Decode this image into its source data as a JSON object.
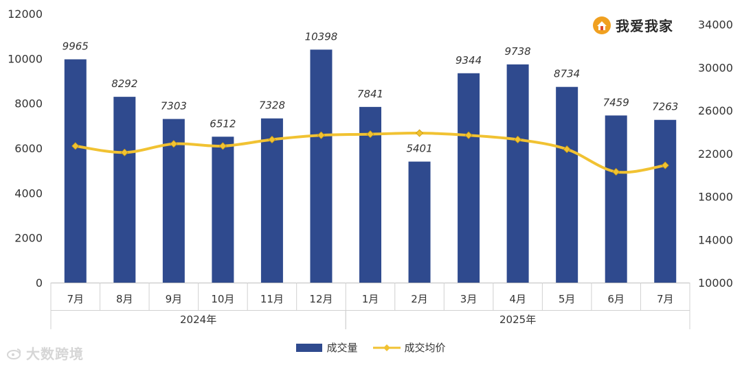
{
  "brand": {
    "name": "我爱我家",
    "icon": "house-logo-icon"
  },
  "watermark": {
    "text": "大数跨境",
    "icon": "weibo-logo-icon"
  },
  "chart_data": {
    "type": "bar+line",
    "categories": [
      "7月",
      "8月",
      "9月",
      "10月",
      "11月",
      "12月",
      "1月",
      "2月",
      "3月",
      "4月",
      "5月",
      "6月",
      "7月"
    ],
    "groups": [
      {
        "label": "2024年",
        "count": 6
      },
      {
        "label": "2025年",
        "count": 7
      }
    ],
    "series": [
      {
        "name": "成交量",
        "type": "bar",
        "axis": "left",
        "color": "#2f4a8e",
        "values": [
          9965,
          8292,
          7303,
          6512,
          7328,
          10398,
          7841,
          5401,
          9344,
          9738,
          8734,
          7459,
          7263
        ],
        "labels": [
          "9965",
          "8292",
          "7303",
          "6512",
          "7328",
          "10398",
          "7841",
          "5401",
          "9344",
          "9738",
          "8734",
          "7459",
          "7263"
        ]
      },
      {
        "name": "成交均价",
        "type": "line",
        "axis": "right",
        "color": "#f1c232",
        "values": [
          22700,
          22100,
          22900,
          22700,
          23300,
          23700,
          23800,
          23900,
          23700,
          23300,
          22400,
          20300,
          20900
        ]
      }
    ],
    "y_left": {
      "min": 0,
      "max": 12000,
      "ticks": [
        "0",
        "2000",
        "4000",
        "6000",
        "8000",
        "10000",
        "12000"
      ]
    },
    "y_right": {
      "min": 10000,
      "max": 35000,
      "ticks": [
        "10000",
        "14000",
        "18000",
        "22000",
        "26000",
        "30000",
        "34000"
      ]
    },
    "grid": false,
    "legend_position": "bottom"
  }
}
